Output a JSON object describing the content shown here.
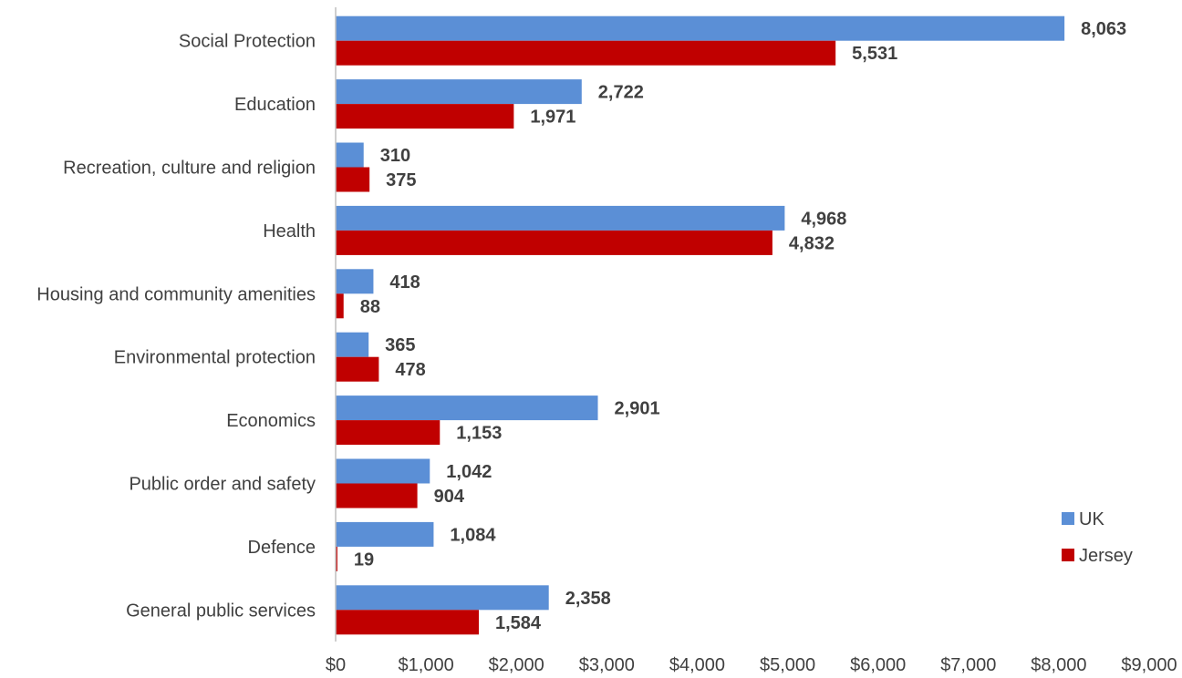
{
  "chart_data": {
    "type": "bar",
    "orientation": "horizontal",
    "categories": [
      "Social Protection",
      "Education",
      "Recreation, culture and religion",
      "Health",
      "Housing and community amenities",
      "Environmental protection",
      "Economics",
      "Public order and safety",
      "Defence",
      "General public services"
    ],
    "series": [
      {
        "name": "UK",
        "color": "#5B8FD6",
        "values": [
          8063,
          2722,
          310,
          4968,
          418,
          365,
          2901,
          1042,
          1084,
          2358
        ]
      },
      {
        "name": "Jersey",
        "color": "#C00000",
        "values": [
          5531,
          1971,
          375,
          4832,
          88,
          478,
          1153,
          904,
          19,
          1584
        ]
      }
    ],
    "xlim": [
      0,
      9000
    ],
    "x_ticks": [
      0,
      1000,
      2000,
      3000,
      4000,
      5000,
      6000,
      7000,
      8000,
      9000
    ],
    "x_tick_labels": [
      "$0",
      "$1,000",
      "$2,000",
      "$3,000",
      "$4,000",
      "$5,000",
      "$6,000",
      "$7,000",
      "$8,000",
      "$9,000"
    ],
    "data_labels": [
      [
        "8,063",
        "2,722",
        "310",
        "4,968",
        "418",
        "365",
        "2,901",
        "1,042",
        "1,084",
        "2,358"
      ],
      [
        "5,531",
        "1,971",
        "375",
        "4,832",
        "88",
        "478",
        "1,153",
        "904",
        "19",
        "1,584"
      ]
    ],
    "title": "",
    "xlabel": "",
    "ylabel": "",
    "grid": false,
    "legend_position": "right"
  }
}
